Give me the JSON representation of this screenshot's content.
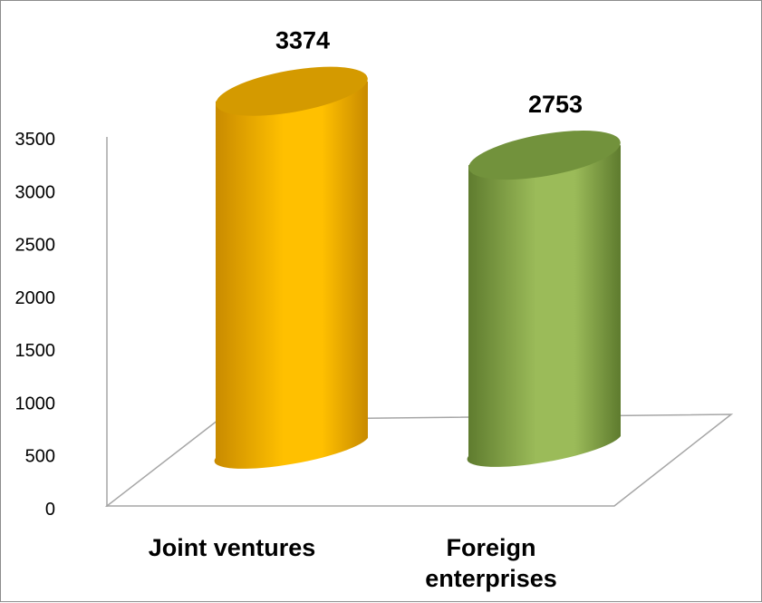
{
  "chart_data": {
    "type": "bar",
    "style": "3d-cylinder",
    "categories": [
      "Joint ventures",
      "Foreign enterprises"
    ],
    "category_lines": [
      [
        "Joint ventures"
      ],
      [
        "Foreign",
        "enterprises"
      ]
    ],
    "values": [
      3374,
      2753
    ],
    "data_labels": [
      "3374",
      "2753"
    ],
    "ylim": [
      0,
      3500
    ],
    "yticks": [
      0,
      500,
      1000,
      1500,
      2000,
      2500,
      3000,
      3500
    ],
    "ytick_labels": [
      "0",
      "500",
      "1000",
      "1500",
      "2000",
      "2500",
      "3000",
      "3500"
    ],
    "title": "",
    "xlabel": "",
    "ylabel": "",
    "grid": false,
    "legend": "none",
    "colors": {
      "series": [
        "#FFC000",
        "#9BBB59"
      ],
      "series_dark": [
        "#C88A00",
        "#5E7B2E"
      ],
      "series_top": [
        "#D49A00",
        "#72923C"
      ],
      "axis": "#A6A6A6"
    }
  }
}
